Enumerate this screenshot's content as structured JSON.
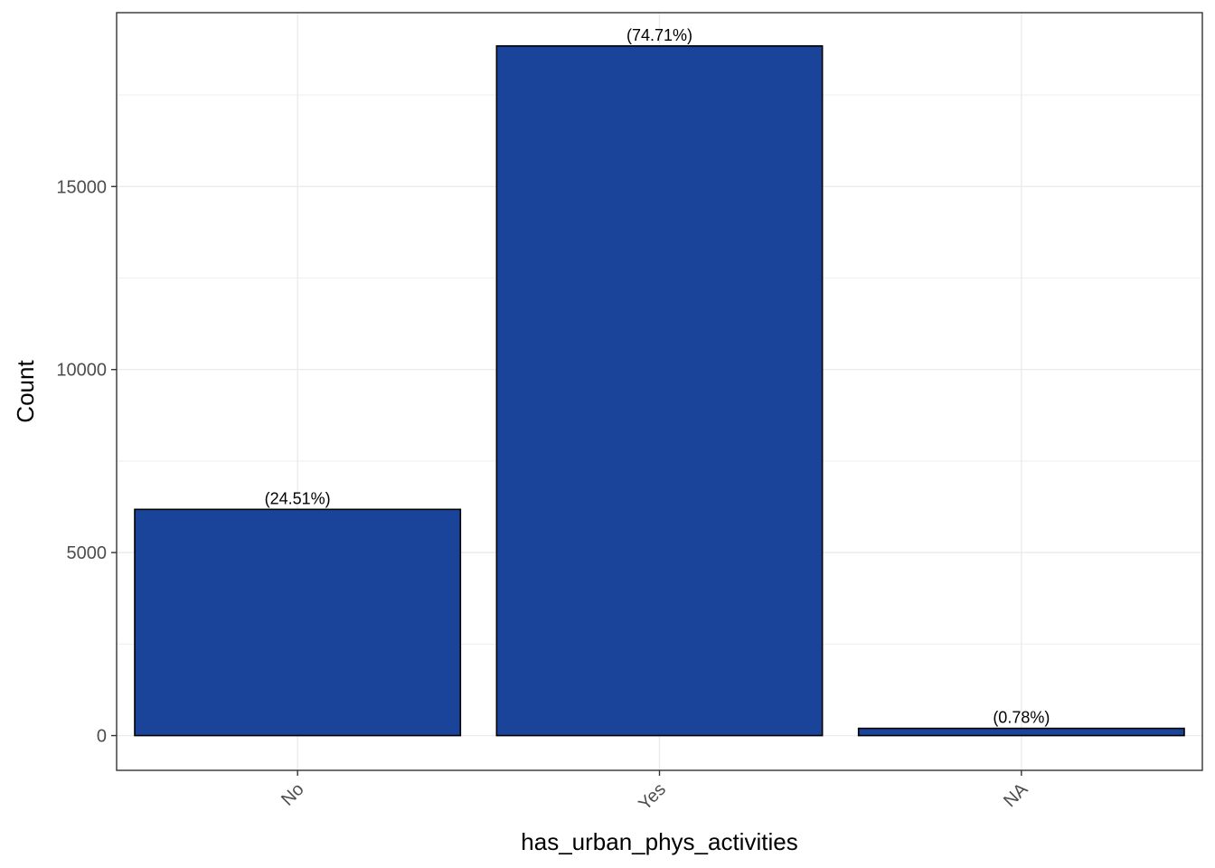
{
  "chart_data": {
    "type": "bar",
    "title": "",
    "xlabel": "has_urban_phys_activities",
    "ylabel": "Count",
    "categories": [
      "No",
      "Yes",
      "NA"
    ],
    "values": [
      6180,
      18840,
      197
    ],
    "data_labels": [
      "(24.51%)",
      "(74.71%)",
      "(0.78%)"
    ],
    "ylim": [
      -950,
      19750
    ],
    "y_ticks": [
      0,
      5000,
      10000,
      15000
    ],
    "y_tick_labels": [
      "0",
      "5000",
      "10000",
      "15000"
    ],
    "y_minor_ticks": [
      2500,
      7500,
      12500,
      17500
    ],
    "grid": true,
    "legend": "none",
    "bar_fill": "#1a4499",
    "bar_stroke": "#000000",
    "grid_color": "#ebebeb",
    "panel_border_color": "#333333"
  }
}
